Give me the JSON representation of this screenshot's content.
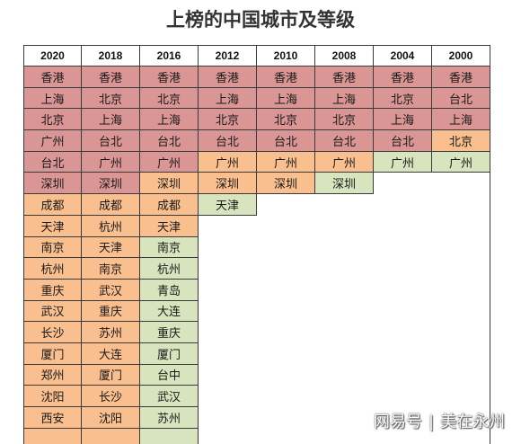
{
  "chart_data": {
    "type": "table",
    "title": "上榜的中国城市及等级",
    "columns": [
      {
        "year": "2020",
        "cells": [
          {
            "city": "香港",
            "fill": "#DA9694"
          },
          {
            "city": "上海",
            "fill": "#DA9694"
          },
          {
            "city": "北京",
            "fill": "#DA9694"
          },
          {
            "city": "广州",
            "fill": "#DA9694"
          },
          {
            "city": "台北",
            "fill": "#DA9694"
          },
          {
            "city": "深圳",
            "fill": "#DA9694"
          },
          {
            "city": "成都",
            "fill": "#FABF8F"
          },
          {
            "city": "天津",
            "fill": "#FABF8F"
          },
          {
            "city": "南京",
            "fill": "#FABF8F"
          },
          {
            "city": "杭州",
            "fill": "#FABF8F"
          },
          {
            "city": "重庆",
            "fill": "#FABF8F"
          },
          {
            "city": "武汉",
            "fill": "#FABF8F"
          },
          {
            "city": "长沙",
            "fill": "#FABF8F"
          },
          {
            "city": "厦门",
            "fill": "#FABF8F"
          },
          {
            "city": "郑州",
            "fill": "#FABF8F"
          },
          {
            "city": "沈阳",
            "fill": "#FABF8F"
          },
          {
            "city": "西安",
            "fill": "#FABF8F"
          },
          {
            "city": "",
            "fill": "#FABF8F"
          }
        ]
      },
      {
        "year": "2018",
        "cells": [
          {
            "city": "香港",
            "fill": "#DA9694"
          },
          {
            "city": "北京",
            "fill": "#DA9694"
          },
          {
            "city": "上海",
            "fill": "#DA9694"
          },
          {
            "city": "台北",
            "fill": "#DA9694"
          },
          {
            "city": "广州",
            "fill": "#DA9694"
          },
          {
            "city": "深圳",
            "fill": "#DA9694"
          },
          {
            "city": "成都",
            "fill": "#FABF8F"
          },
          {
            "city": "杭州",
            "fill": "#FABF8F"
          },
          {
            "city": "天津",
            "fill": "#FABF8F"
          },
          {
            "city": "南京",
            "fill": "#FABF8F"
          },
          {
            "city": "武汉",
            "fill": "#FABF8F"
          },
          {
            "city": "重庆",
            "fill": "#FABF8F"
          },
          {
            "city": "苏州",
            "fill": "#FABF8F"
          },
          {
            "city": "大连",
            "fill": "#FABF8F"
          },
          {
            "city": "厦门",
            "fill": "#FABF8F"
          },
          {
            "city": "长沙",
            "fill": "#FABF8F"
          },
          {
            "city": "沈阳",
            "fill": "#FABF8F"
          },
          {
            "city": "",
            "fill": "#FABF8F"
          }
        ]
      },
      {
        "year": "2016",
        "cells": [
          {
            "city": "香港",
            "fill": "#DA9694"
          },
          {
            "city": "北京",
            "fill": "#DA9694"
          },
          {
            "city": "上海",
            "fill": "#DA9694"
          },
          {
            "city": "台北",
            "fill": "#DA9694"
          },
          {
            "city": "广州",
            "fill": "#DA9694"
          },
          {
            "city": "深圳",
            "fill": "#FABF8F"
          },
          {
            "city": "成都",
            "fill": "#FABF8F"
          },
          {
            "city": "天津",
            "fill": "#FABF8F"
          },
          {
            "city": "南京",
            "fill": "#D7E4BD"
          },
          {
            "city": "杭州",
            "fill": "#D7E4BD"
          },
          {
            "city": "青岛",
            "fill": "#D7E4BD"
          },
          {
            "city": "大连",
            "fill": "#D7E4BD"
          },
          {
            "city": "重庆",
            "fill": "#D7E4BD"
          },
          {
            "city": "厦门",
            "fill": "#D7E4BD"
          },
          {
            "city": "台中",
            "fill": "#D7E4BD"
          },
          {
            "city": "武汉",
            "fill": "#D7E4BD"
          },
          {
            "city": "苏州",
            "fill": "#D7E4BD"
          },
          {
            "city": "",
            "fill": "#D7E4BD"
          }
        ]
      },
      {
        "year": "2012",
        "cells": [
          {
            "city": "香港",
            "fill": "#DA9694"
          },
          {
            "city": "上海",
            "fill": "#DA9694"
          },
          {
            "city": "北京",
            "fill": "#DA9694"
          },
          {
            "city": "台北",
            "fill": "#DA9694"
          },
          {
            "city": "广州",
            "fill": "#FABF8F"
          },
          {
            "city": "深圳",
            "fill": "#FABF8F"
          },
          {
            "city": "天津",
            "fill": "#D7E4BD"
          }
        ]
      },
      {
        "year": "2010",
        "cells": [
          {
            "city": "香港",
            "fill": "#DA9694"
          },
          {
            "city": "上海",
            "fill": "#DA9694"
          },
          {
            "city": "北京",
            "fill": "#DA9694"
          },
          {
            "city": "台北",
            "fill": "#DA9694"
          },
          {
            "city": "广州",
            "fill": "#FABF8F"
          },
          {
            "city": "深圳",
            "fill": "#FABF8F"
          }
        ]
      },
      {
        "year": "2008",
        "cells": [
          {
            "city": "香港",
            "fill": "#DA9694"
          },
          {
            "city": "上海",
            "fill": "#DA9694"
          },
          {
            "city": "北京",
            "fill": "#DA9694"
          },
          {
            "city": "台北",
            "fill": "#DA9694"
          },
          {
            "city": "广州",
            "fill": "#FABF8F"
          },
          {
            "city": "深圳",
            "fill": "#D7E4BD"
          }
        ]
      },
      {
        "year": "2004",
        "cells": [
          {
            "city": "香港",
            "fill": "#DA9694"
          },
          {
            "city": "北京",
            "fill": "#DA9694"
          },
          {
            "city": "上海",
            "fill": "#DA9694"
          },
          {
            "city": "台北",
            "fill": "#DA9694"
          },
          {
            "city": "广州",
            "fill": "#D7E4BD"
          }
        ]
      },
      {
        "year": "2000",
        "cells": [
          {
            "city": "香港",
            "fill": "#DA9694"
          },
          {
            "city": "台北",
            "fill": "#DA9694"
          },
          {
            "city": "上海",
            "fill": "#DA9694"
          },
          {
            "city": "北京",
            "fill": "#FABF8F"
          },
          {
            "city": "广州",
            "fill": "#D7E4BD"
          }
        ]
      }
    ]
  },
  "watermark": {
    "brand": "网易号",
    "separator": "|",
    "account": "美在永州"
  }
}
